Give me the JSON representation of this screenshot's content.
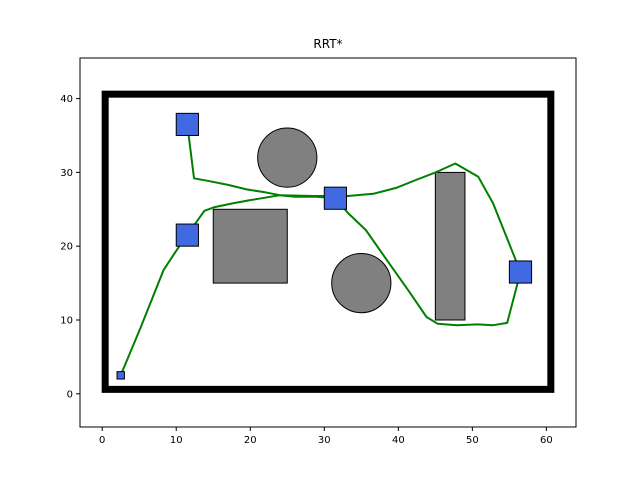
{
  "chart_data": {
    "type": "path-planning",
    "title": "RRT*",
    "xlabel": "",
    "ylabel": "",
    "xlim": [
      -3,
      64
    ],
    "ylim": [
      -4.5,
      45.5
    ],
    "xticks": [
      0,
      10,
      20,
      30,
      40,
      50,
      60
    ],
    "yticks": [
      0,
      10,
      20,
      30,
      40
    ],
    "xtick_labels": [
      "0",
      "10",
      "20",
      "30",
      "40",
      "50",
      "60"
    ],
    "ytick_labels": [
      "0",
      "10",
      "20",
      "30",
      "40"
    ],
    "grid": false,
    "boundary": {
      "x": [
        0.4,
        60.6
      ],
      "y": [
        0.6,
        40.6
      ],
      "color": "#000000"
    },
    "obstacles": [
      {
        "name": "circle-obstacle-top",
        "shape": "circle",
        "cx": 25,
        "cy": 32,
        "r": 4,
        "color": "#808080"
      },
      {
        "name": "circle-obstacle-bottom",
        "shape": "circle",
        "cx": 35,
        "cy": 15,
        "r": 4,
        "color": "#808080"
      },
      {
        "name": "square-obstacle",
        "shape": "rect",
        "x": 15,
        "y": 15,
        "w": 10,
        "h": 10,
        "color": "#808080"
      },
      {
        "name": "bar-obstacle",
        "shape": "rect",
        "x": 45,
        "y": 10,
        "w": 4,
        "h": 20,
        "color": "#808080"
      }
    ],
    "waypoints": [
      {
        "name": "waypoint-start",
        "x": 2.5,
        "y": 2.5,
        "size": 1,
        "color": "#4169e1"
      },
      {
        "name": "waypoint-upper-left",
        "x": 11.5,
        "y": 36.5,
        "size": 3,
        "color": "#4169e1"
      },
      {
        "name": "waypoint-left",
        "x": 11.5,
        "y": 21.5,
        "size": 3,
        "color": "#4169e1"
      },
      {
        "name": "waypoint-center",
        "x": 31.5,
        "y": 26.5,
        "size": 3,
        "color": "#4169e1"
      },
      {
        "name": "waypoint-right",
        "x": 56.5,
        "y": 16.5,
        "size": 3,
        "color": "#4169e1"
      }
    ],
    "path": {
      "color": "#008000",
      "points": [
        [
          2.5,
          2.5
        ],
        [
          5.2,
          9.0
        ],
        [
          8.3,
          16.8
        ],
        [
          10.8,
          20.6
        ],
        [
          13.8,
          24.8
        ],
        [
          15.2,
          25.3
        ],
        [
          17.6,
          25.8
        ],
        [
          19.8,
          26.2
        ],
        [
          21.6,
          26.5
        ],
        [
          23.9,
          26.9
        ],
        [
          26.1,
          26.7
        ],
        [
          28.9,
          26.7
        ],
        [
          31.5,
          26.5
        ],
        [
          33.2,
          24.5
        ],
        [
          35.6,
          22.2
        ],
        [
          38.6,
          17.9
        ],
        [
          41.5,
          13.8
        ],
        [
          43.8,
          10.4
        ],
        [
          45.3,
          9.5
        ],
        [
          47.9,
          9.3
        ],
        [
          50.7,
          9.4
        ],
        [
          52.8,
          9.3
        ],
        [
          54.7,
          9.6
        ],
        [
          56.5,
          16.5
        ],
        [
          52.8,
          25.8
        ],
        [
          50.8,
          29.4
        ],
        [
          47.7,
          31.2
        ],
        [
          44.8,
          29.9
        ],
        [
          42.2,
          28.9
        ],
        [
          39.7,
          27.9
        ],
        [
          36.6,
          27.1
        ],
        [
          33.2,
          26.8
        ],
        [
          28.6,
          26.8
        ],
        [
          24.1,
          26.9
        ],
        [
          22.0,
          27.3
        ],
        [
          19.5,
          27.7
        ],
        [
          17.0,
          28.3
        ],
        [
          14.5,
          28.8
        ],
        [
          12.4,
          29.2
        ],
        [
          11.5,
          36.5
        ]
      ]
    }
  }
}
